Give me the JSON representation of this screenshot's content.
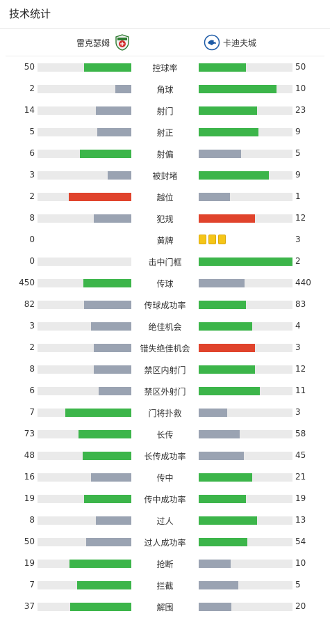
{
  "header": {
    "title": "技术统计"
  },
  "teams": {
    "home": "雷克瑟姆",
    "away": "卡迪夫城"
  },
  "colors": {
    "green": "#3cb54a",
    "grey": "#9aa3b2",
    "red": "#e0432c",
    "yellow": "#f5c518",
    "track": "#eaeaea"
  },
  "stats": [
    {
      "label": "控球率",
      "home": "50",
      "away": "50",
      "home_fill": 0.5,
      "away_fill": 0.5,
      "home_color": "green",
      "away_color": "green"
    },
    {
      "label": "角球",
      "home": "2",
      "away": "10",
      "home_fill": 0.17,
      "away_fill": 0.83,
      "home_color": "grey",
      "away_color": "green"
    },
    {
      "label": "射门",
      "home": "14",
      "away": "23",
      "home_fill": 0.38,
      "away_fill": 0.62,
      "home_color": "grey",
      "away_color": "green"
    },
    {
      "label": "射正",
      "home": "5",
      "away": "9",
      "home_fill": 0.36,
      "away_fill": 0.64,
      "home_color": "grey",
      "away_color": "green"
    },
    {
      "label": "射偏",
      "home": "6",
      "away": "5",
      "home_fill": 0.55,
      "away_fill": 0.45,
      "home_color": "green",
      "away_color": "grey"
    },
    {
      "label": "被封堵",
      "home": "3",
      "away": "9",
      "home_fill": 0.25,
      "away_fill": 0.75,
      "home_color": "grey",
      "away_color": "green"
    },
    {
      "label": "越位",
      "home": "2",
      "away": "1",
      "home_fill": 0.67,
      "away_fill": 0.33,
      "home_color": "red",
      "away_color": "grey"
    },
    {
      "label": "犯规",
      "home": "8",
      "away": "12",
      "home_fill": 0.4,
      "away_fill": 0.6,
      "home_color": "grey",
      "away_color": "red"
    },
    {
      "label": "黄牌",
      "home": "0",
      "away": "3",
      "type": "cards",
      "away_cards": 3
    },
    {
      "label": "击中门框",
      "home": "0",
      "away": "2",
      "home_fill": 0,
      "away_fill": 1.0,
      "home_color": "grey",
      "away_color": "green"
    },
    {
      "label": "传球",
      "home": "450",
      "away": "440",
      "home_fill": 0.51,
      "away_fill": 0.49,
      "home_color": "green",
      "away_color": "grey"
    },
    {
      "label": "传球成功率",
      "home": "82",
      "away": "83",
      "home_fill": 0.5,
      "away_fill": 0.5,
      "home_color": "grey",
      "away_color": "green"
    },
    {
      "label": "绝佳机会",
      "home": "3",
      "away": "4",
      "home_fill": 0.43,
      "away_fill": 0.57,
      "home_color": "grey",
      "away_color": "green"
    },
    {
      "label": "错失绝佳机会",
      "home": "2",
      "away": "3",
      "home_fill": 0.4,
      "away_fill": 0.6,
      "home_color": "grey",
      "away_color": "red"
    },
    {
      "label": "禁区内射门",
      "home": "8",
      "away": "12",
      "home_fill": 0.4,
      "away_fill": 0.6,
      "home_color": "grey",
      "away_color": "green"
    },
    {
      "label": "禁区外射门",
      "home": "6",
      "away": "11",
      "home_fill": 0.35,
      "away_fill": 0.65,
      "home_color": "grey",
      "away_color": "green"
    },
    {
      "label": "门将扑救",
      "home": "7",
      "away": "3",
      "home_fill": 0.7,
      "away_fill": 0.3,
      "home_color": "green",
      "away_color": "grey"
    },
    {
      "label": "长传",
      "home": "73",
      "away": "58",
      "home_fill": 0.56,
      "away_fill": 0.44,
      "home_color": "green",
      "away_color": "grey"
    },
    {
      "label": "长传成功率",
      "home": "48",
      "away": "45",
      "home_fill": 0.52,
      "away_fill": 0.48,
      "home_color": "green",
      "away_color": "grey"
    },
    {
      "label": "传中",
      "home": "16",
      "away": "21",
      "home_fill": 0.43,
      "away_fill": 0.57,
      "home_color": "grey",
      "away_color": "green"
    },
    {
      "label": "传中成功率",
      "home": "19",
      "away": "19",
      "home_fill": 0.5,
      "away_fill": 0.5,
      "home_color": "green",
      "away_color": "green"
    },
    {
      "label": "过人",
      "home": "8",
      "away": "13",
      "home_fill": 0.38,
      "away_fill": 0.62,
      "home_color": "grey",
      "away_color": "green"
    },
    {
      "label": "过人成功率",
      "home": "50",
      "away": "54",
      "home_fill": 0.48,
      "away_fill": 0.52,
      "home_color": "grey",
      "away_color": "green"
    },
    {
      "label": "抢断",
      "home": "19",
      "away": "10",
      "home_fill": 0.66,
      "away_fill": 0.34,
      "home_color": "green",
      "away_color": "grey"
    },
    {
      "label": "拦截",
      "home": "7",
      "away": "5",
      "home_fill": 0.58,
      "away_fill": 0.42,
      "home_color": "green",
      "away_color": "grey"
    },
    {
      "label": "解围",
      "home": "37",
      "away": "20",
      "home_fill": 0.65,
      "away_fill": 0.35,
      "home_color": "green",
      "away_color": "grey"
    }
  ]
}
